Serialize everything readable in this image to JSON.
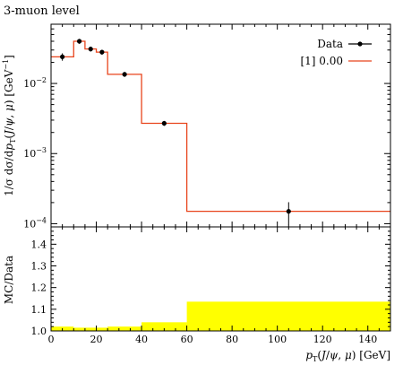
{
  "chart_data": [
    {
      "type": "line",
      "title": "3-muon level",
      "xlabel": "p_T(J/ψ, μ) [GeV]",
      "ylabel": "1/σ dσ/dp_T(J/ψ, μ) [GeV⁻¹]",
      "xlim": [
        0,
        150
      ],
      "ylim": [
        9e-05,
        0.07
      ],
      "yscale": "log",
      "yticks": [
        {
          "value": 0.01,
          "label_base": "10",
          "label_exp": "−2"
        },
        {
          "value": 0.001,
          "label_base": "10",
          "label_exp": "−3"
        },
        {
          "value": 0.0001,
          "label_base": "10",
          "label_exp": "−4"
        }
      ],
      "legend_position": "top-right",
      "series": [
        {
          "name": "Data",
          "kind": "points",
          "color": "#000000",
          "x": [
            5,
            12.5,
            17.5,
            22.5,
            32.5,
            50,
            105
          ],
          "y": [
            0.024,
            0.04,
            0.031,
            0.028,
            0.0135,
            0.0027,
            0.00015
          ]
        },
        {
          "name": "[1] 0.00",
          "kind": "histogram",
          "color": "#e8441c",
          "bins": [
            0,
            10,
            15,
            20,
            25,
            40,
            60,
            150
          ],
          "values": [
            0.024,
            0.04,
            0.031,
            0.028,
            0.0135,
            0.0027,
            0.00015
          ]
        }
      ]
    },
    {
      "type": "area",
      "ylabel": "MC/Data",
      "xlabel": "p_T(J/ψ, μ) [GeV]",
      "xlim": [
        0,
        150
      ],
      "ylim": [
        1.0,
        1.48
      ],
      "xticks": [
        0,
        20,
        40,
        60,
        80,
        100,
        120,
        140
      ],
      "yticks": [
        1.0,
        1.1,
        1.2,
        1.3,
        1.4
      ],
      "band_color": "#ffff00",
      "band": {
        "bins": [
          0,
          10,
          15,
          20,
          25,
          40,
          60,
          150
        ],
        "upper": [
          1.02,
          1.015,
          1.015,
          1.015,
          1.02,
          1.04,
          1.135
        ]
      },
      "reference": 1.0
    }
  ]
}
